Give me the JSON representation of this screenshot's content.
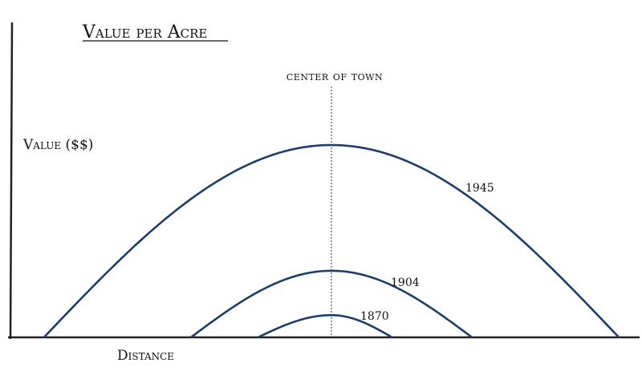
{
  "chart_data": {
    "type": "line",
    "title": "Value per Acre",
    "xlabel": "Distance",
    "ylabel": "Value ($$)",
    "annotation": "center of town",
    "center_x": 0,
    "xlim": [
      -10,
      10
    ],
    "ylim": [
      0,
      6
    ],
    "grid": false,
    "series": [
      {
        "name": "1945",
        "color": "#1f3d6b",
        "extent": [
          -9,
          9
        ],
        "peak": 5.2
      },
      {
        "name": "1904",
        "color": "#1f3d6b",
        "extent": [
          -4.4,
          4.4
        ],
        "peak": 1.8
      },
      {
        "name": "1870",
        "color": "#1f3d6b",
        "extent": [
          -2.3,
          1.9
        ],
        "peak": 0.6
      }
    ]
  }
}
